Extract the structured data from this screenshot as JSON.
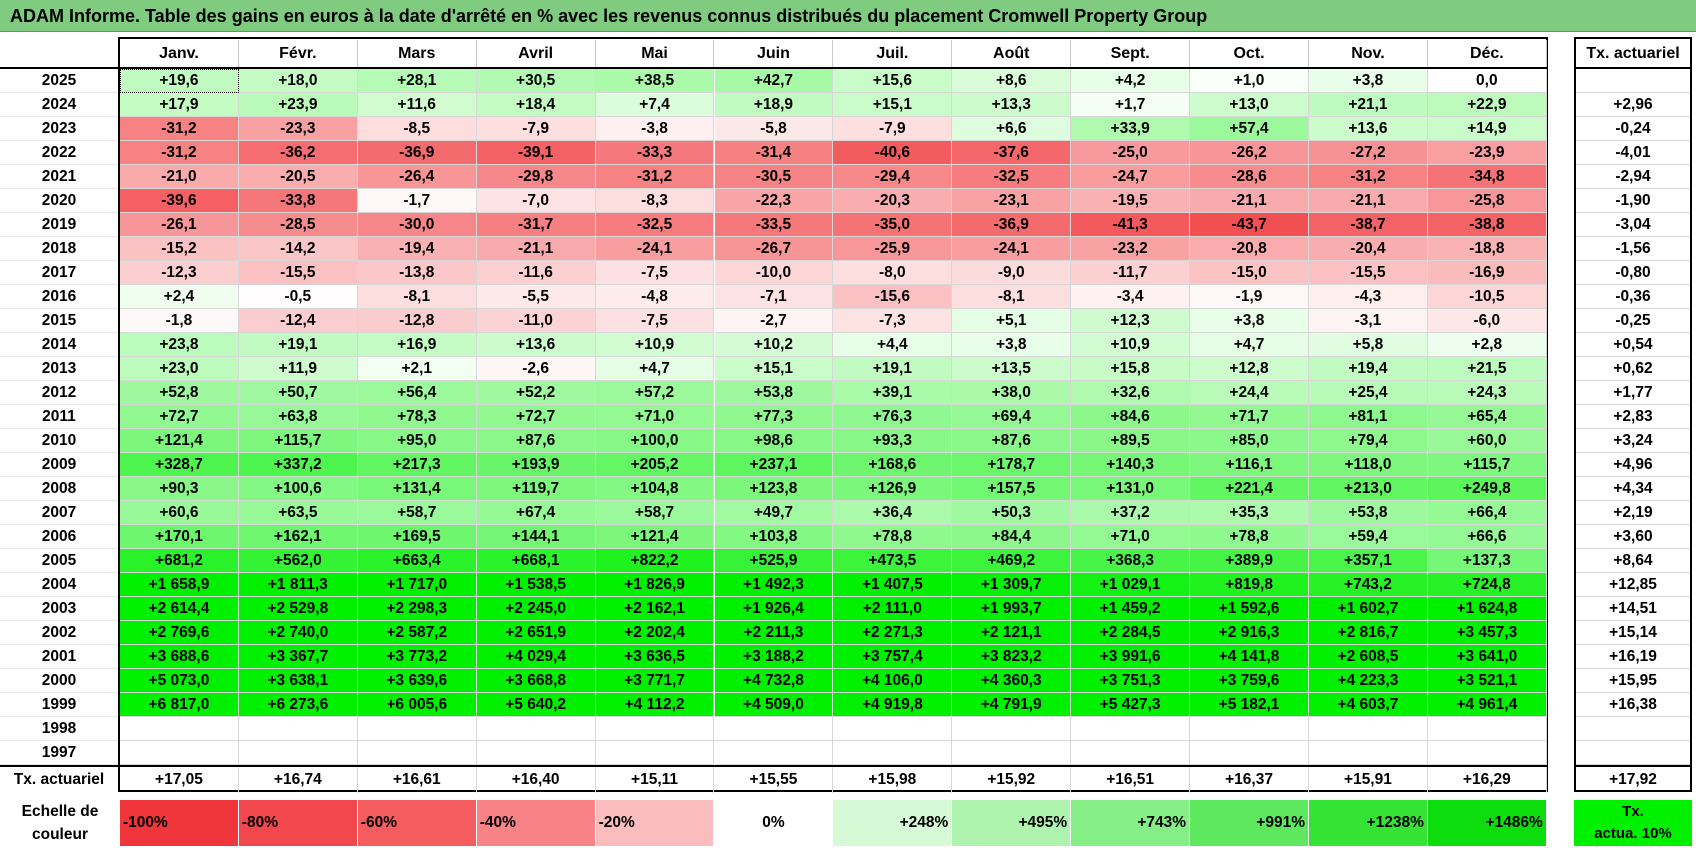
{
  "title": "ADAM Informe. Table des gains en euros à la date d'arrêté en % avec les revenus connus distribués du placement Cromwell Property Group",
  "months": [
    "Janv.",
    "Févr.",
    "Mars",
    "Avril",
    "Mai",
    "Juin",
    "Juil.",
    "Août",
    "Sept.",
    "Oct.",
    "Nov.",
    "Déc."
  ],
  "tx_header": "Tx. actuariel",
  "rows": [
    {
      "year": "2025",
      "values": [
        "+19,6",
        "+18,0",
        "+28,1",
        "+30,5",
        "+38,5",
        "+42,7",
        "+15,6",
        "+8,6",
        "+4,2",
        "+1,0",
        "+3,8",
        "0,0"
      ],
      "tx": ""
    },
    {
      "year": "2024",
      "values": [
        "+17,9",
        "+23,9",
        "+11,6",
        "+18,4",
        "+7,4",
        "+18,9",
        "+15,1",
        "+13,3",
        "+1,7",
        "+13,0",
        "+21,1",
        "+22,9"
      ],
      "tx": "+2,96"
    },
    {
      "year": "2023",
      "values": [
        "-31,2",
        "-23,3",
        "-8,5",
        "-7,9",
        "-3,8",
        "-5,8",
        "-7,9",
        "+6,6",
        "+33,9",
        "+57,4",
        "+13,6",
        "+14,9"
      ],
      "tx": "-0,24"
    },
    {
      "year": "2022",
      "values": [
        "-31,2",
        "-36,2",
        "-36,9",
        "-39,1",
        "-33,3",
        "-31,4",
        "-40,6",
        "-37,6",
        "-25,0",
        "-26,2",
        "-27,2",
        "-23,9"
      ],
      "tx": "-4,01"
    },
    {
      "year": "2021",
      "values": [
        "-21,0",
        "-20,5",
        "-26,4",
        "-29,8",
        "-31,2",
        "-30,5",
        "-29,4",
        "-32,5",
        "-24,7",
        "-28,6",
        "-31,2",
        "-34,8"
      ],
      "tx": "-2,94"
    },
    {
      "year": "2020",
      "values": [
        "-39,6",
        "-33,8",
        "-1,7",
        "-7,0",
        "-8,3",
        "-22,3",
        "-20,3",
        "-23,1",
        "-19,5",
        "-21,1",
        "-21,1",
        "-25,8"
      ],
      "tx": "-1,90"
    },
    {
      "year": "2019",
      "values": [
        "-26,1",
        "-28,5",
        "-30,0",
        "-31,7",
        "-32,5",
        "-33,5",
        "-35,0",
        "-36,9",
        "-41,3",
        "-43,7",
        "-38,7",
        "-38,8"
      ],
      "tx": "-3,04"
    },
    {
      "year": "2018",
      "values": [
        "-15,2",
        "-14,2",
        "-19,4",
        "-21,1",
        "-24,1",
        "-26,7",
        "-25,9",
        "-24,1",
        "-23,2",
        "-20,8",
        "-20,4",
        "-18,8"
      ],
      "tx": "-1,56"
    },
    {
      "year": "2017",
      "values": [
        "-12,3",
        "-15,5",
        "-13,8",
        "-11,6",
        "-7,5",
        "-10,0",
        "-8,0",
        "-9,0",
        "-11,7",
        "-15,0",
        "-15,5",
        "-16,9"
      ],
      "tx": "-0,80"
    },
    {
      "year": "2016",
      "values": [
        "+2,4",
        "-0,5",
        "-8,1",
        "-5,5",
        "-4,8",
        "-7,1",
        "-15,6",
        "-8,1",
        "-3,4",
        "-1,9",
        "-4,3",
        "-10,5"
      ],
      "tx": "-0,36"
    },
    {
      "year": "2015",
      "values": [
        "-1,8",
        "-12,4",
        "-12,8",
        "-11,0",
        "-7,5",
        "-2,7",
        "-7,3",
        "+5,1",
        "+12,3",
        "+3,8",
        "-3,1",
        "-6,0"
      ],
      "tx": "-0,25"
    },
    {
      "year": "2014",
      "values": [
        "+23,8",
        "+19,1",
        "+16,9",
        "+13,6",
        "+10,9",
        "+10,2",
        "+4,4",
        "+3,8",
        "+10,9",
        "+4,7",
        "+5,8",
        "+2,8"
      ],
      "tx": "+0,54"
    },
    {
      "year": "2013",
      "values": [
        "+23,0",
        "+11,9",
        "+2,1",
        "-2,6",
        "+4,7",
        "+15,1",
        "+19,1",
        "+13,5",
        "+15,8",
        "+12,8",
        "+19,4",
        "+21,5"
      ],
      "tx": "+0,62"
    },
    {
      "year": "2012",
      "values": [
        "+52,8",
        "+50,7",
        "+56,4",
        "+52,2",
        "+57,2",
        "+53,8",
        "+39,1",
        "+38,0",
        "+32,6",
        "+24,4",
        "+25,4",
        "+24,3"
      ],
      "tx": "+1,77"
    },
    {
      "year": "2011",
      "values": [
        "+72,7",
        "+63,8",
        "+78,3",
        "+72,7",
        "+71,0",
        "+77,3",
        "+76,3",
        "+69,4",
        "+84,6",
        "+71,7",
        "+81,1",
        "+65,4"
      ],
      "tx": "+2,83"
    },
    {
      "year": "2010",
      "values": [
        "+121,4",
        "+115,7",
        "+95,0",
        "+87,6",
        "+100,0",
        "+98,6",
        "+93,3",
        "+87,6",
        "+89,5",
        "+85,0",
        "+79,4",
        "+60,0"
      ],
      "tx": "+3,24"
    },
    {
      "year": "2009",
      "values": [
        "+328,7",
        "+337,2",
        "+217,3",
        "+193,9",
        "+205,2",
        "+237,1",
        "+168,6",
        "+178,7",
        "+140,3",
        "+116,1",
        "+118,0",
        "+115,7"
      ],
      "tx": "+4,96"
    },
    {
      "year": "2008",
      "values": [
        "+90,3",
        "+100,6",
        "+131,4",
        "+119,7",
        "+104,8",
        "+123,8",
        "+126,9",
        "+157,5",
        "+131,0",
        "+221,4",
        "+213,0",
        "+249,8"
      ],
      "tx": "+4,34"
    },
    {
      "year": "2007",
      "values": [
        "+60,6",
        "+63,5",
        "+58,7",
        "+67,4",
        "+58,7",
        "+49,7",
        "+36,4",
        "+50,3",
        "+37,2",
        "+35,3",
        "+53,8",
        "+66,4"
      ],
      "tx": "+2,19"
    },
    {
      "year": "2006",
      "values": [
        "+170,1",
        "+162,1",
        "+169,5",
        "+144,1",
        "+121,4",
        "+103,8",
        "+78,8",
        "+84,4",
        "+71,0",
        "+78,8",
        "+59,4",
        "+66,6"
      ],
      "tx": "+3,60"
    },
    {
      "year": "2005",
      "values": [
        "+681,2",
        "+562,0",
        "+663,4",
        "+668,1",
        "+822,2",
        "+525,9",
        "+473,5",
        "+469,2",
        "+368,3",
        "+389,9",
        "+357,1",
        "+137,3"
      ],
      "tx": "+8,64"
    },
    {
      "year": "2004",
      "values": [
        "+1 658,9",
        "+1 811,3",
        "+1 717,0",
        "+1 538,5",
        "+1 826,9",
        "+1 492,3",
        "+1 407,5",
        "+1 309,7",
        "+1 029,1",
        "+819,8",
        "+743,2",
        "+724,8"
      ],
      "tx": "+12,85"
    },
    {
      "year": "2003",
      "values": [
        "+2 614,4",
        "+2 529,8",
        "+2 298,3",
        "+2 245,0",
        "+2 162,1",
        "+1 926,4",
        "+2 111,0",
        "+1 993,7",
        "+1 459,2",
        "+1 592,6",
        "+1 602,7",
        "+1 624,8"
      ],
      "tx": "+14,51"
    },
    {
      "year": "2002",
      "values": [
        "+2 769,6",
        "+2 740,0",
        "+2 587,2",
        "+2 651,9",
        "+2 202,4",
        "+2 211,3",
        "+2 271,3",
        "+2 121,1",
        "+2 284,5",
        "+2 916,3",
        "+2 816,7",
        "+3 457,3"
      ],
      "tx": "+15,14"
    },
    {
      "year": "2001",
      "values": [
        "+3 688,6",
        "+3 367,7",
        "+3 773,2",
        "+4 029,4",
        "+3 636,5",
        "+3 188,2",
        "+3 757,4",
        "+3 823,2",
        "+3 991,6",
        "+4 141,8",
        "+2 608,5",
        "+3 641,0"
      ],
      "tx": "+16,19"
    },
    {
      "year": "2000",
      "values": [
        "+5 073,0",
        "+3 638,1",
        "+3 639,6",
        "+3 668,8",
        "+3 771,7",
        "+4 732,8",
        "+4 106,0",
        "+4 360,3",
        "+3 751,3",
        "+3 759,6",
        "+4 223,3",
        "+3 521,1"
      ],
      "tx": "+15,95"
    },
    {
      "year": "1999",
      "values": [
        "+6 817,0",
        "+6 273,6",
        "+6 005,6",
        "+5 640,2",
        "+4 112,2",
        "+4 509,0",
        "+4 919,8",
        "+4 791,9",
        "+5 427,3",
        "+5 182,1",
        "+4 603,7",
        "+4 961,4"
      ],
      "tx": "+16,38"
    },
    {
      "year": "1998",
      "values": [
        "",
        "",
        "",
        "",
        "",
        "",
        "",
        "",
        "",
        "",
        "",
        ""
      ],
      "tx": ""
    },
    {
      "year": "1997",
      "values": [
        "",
        "",
        "",
        "",
        "",
        "",
        "",
        "",
        "",
        "",
        "",
        ""
      ],
      "tx": ""
    }
  ],
  "footer": {
    "label": "Tx. actuariel",
    "values": [
      "+17,05",
      "+16,74",
      "+16,61",
      "+16,40",
      "+15,11",
      "+15,55",
      "+15,98",
      "+15,92",
      "+16,51",
      "+16,37",
      "+15,91",
      "+16,29"
    ],
    "total": "+17,92"
  },
  "legend": {
    "label_line1": "Echelle de",
    "label_line2": "couleur",
    "items": [
      {
        "text": "-100%",
        "color": "#f0353b",
        "align": "left"
      },
      {
        "text": "-80%",
        "color": "#f2474c",
        "align": "left"
      },
      {
        "text": "-60%",
        "color": "#f45c60",
        "align": "left"
      },
      {
        "text": "-40%",
        "color": "#f78387",
        "align": "left"
      },
      {
        "text": "-20%",
        "color": "#fbbcbe",
        "align": "left"
      },
      {
        "text": "0%",
        "color": "#ffffff",
        "align": "center"
      },
      {
        "text": "+248%",
        "color": "#d6f9d6",
        "align": "right"
      },
      {
        "text": "+495%",
        "color": "#aef3ae",
        "align": "right"
      },
      {
        "text": "+743%",
        "color": "#86ee86",
        "align": "right"
      },
      {
        "text": "+991%",
        "color": "#5ee85e",
        "align": "right"
      },
      {
        "text": "+1238%",
        "color": "#35e335",
        "align": "right"
      },
      {
        "text": "+1486%",
        "color": "#0ddc0d",
        "align": "right"
      }
    ],
    "last_line1": "Tx.",
    "last_line2": "actua. 10%",
    "last_color": "#00f000"
  },
  "colors": {
    "title_bg": "#7fcc80",
    "max_green": "#00f000",
    "max_red": "#f0353b"
  }
}
